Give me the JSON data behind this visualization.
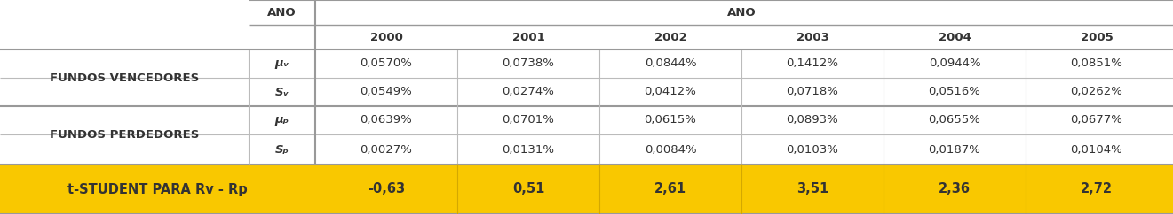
{
  "anos": [
    "2000",
    "2001",
    "2002",
    "2003",
    "2004",
    "2005"
  ],
  "ano_header": "ANO",
  "fundos_vencedores_label": "FUNDOS VENCEDORES",
  "fundos_perdedores_label": "FUNDOS PERDEDORES",
  "mu_v_label": "μᵥ",
  "sv_label": "Sᵥ",
  "mu_p_label": "μₚ",
  "sp_label": "Sₚ",
  "mu_v": [
    "0,0570%",
    "0,0738%",
    "0,0844%",
    "0,1412%",
    "0,0944%",
    "0,0851%"
  ],
  "sv": [
    "0,0549%",
    "0,0274%",
    "0,0412%",
    "0,0718%",
    "0,0516%",
    "0,0262%"
  ],
  "mu_p": [
    "0,0639%",
    "0,0701%",
    "0,0615%",
    "0,0893%",
    "0,0655%",
    "0,0677%"
  ],
  "sp": [
    "0,0027%",
    "0,0131%",
    "0,0084%",
    "0,0103%",
    "0,0187%",
    "0,0104%"
  ],
  "t_student_label": "t-STUDENT PARA Rv - Rp",
  "t_student_values": [
    "-0,63",
    "0,51",
    "2,61",
    "3,51",
    "2,36",
    "2,72"
  ],
  "t_student_bg": "#F9C800",
  "bg_color": "#ffffff",
  "line_color_dark": "#999999",
  "line_color_light": "#bbbbbb",
  "text_color": "#333333"
}
